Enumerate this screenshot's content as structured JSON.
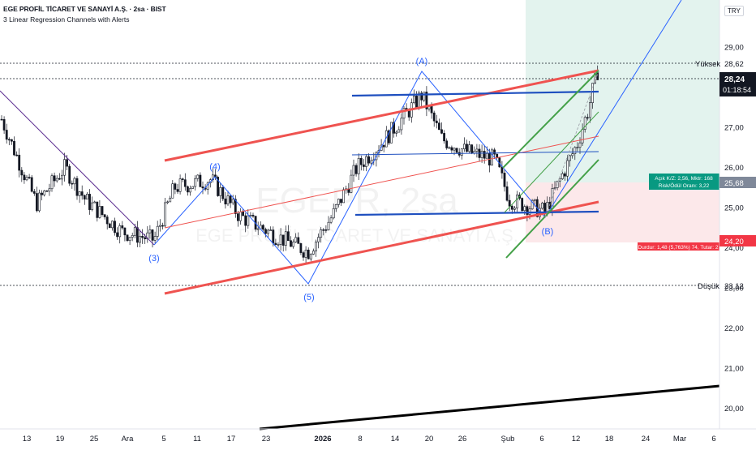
{
  "header": {
    "title": "EGE PROFİL TİCARET VE SANAYİ A.Ş. · 2sa · BIST",
    "subtitle": "3 Linear Regression Channels with Alerts",
    "currency": "TRY"
  },
  "watermark": {
    "symbol": "EGEPR, 2sa",
    "name": "EGE PROFİL TİCARET VE SANAYİ A.Ş."
  },
  "chart_data": {
    "type": "candlestick",
    "ylim": [
      19.7,
      30.1
    ],
    "y_ticks": [
      "29,00",
      "28,00",
      "27,00",
      "26,00",
      "25,00",
      "24,00",
      "23,00",
      "22,00",
      "21,00",
      "20,00"
    ],
    "x_ticks": [
      "13",
      "19",
      "25",
      "Ara",
      "5",
      "11",
      "17",
      "23",
      "2026",
      "8",
      "14",
      "20",
      "26",
      "Şub",
      "6",
      "12",
      "18",
      "24",
      "Mar",
      "6"
    ],
    "wave_labels": [
      "(3)",
      "(4)",
      "(5)",
      "(A)",
      "(B)"
    ],
    "price_levels": {
      "high": {
        "label": "Yüksek",
        "value_text": "28,62",
        "value": 28.62
      },
      "current": {
        "value_text": "28,24",
        "value": 28.24,
        "countdown": "01:18:54"
      },
      "entry": {
        "value_text": "25,68",
        "value": 25.68
      },
      "stop": {
        "value_text": "24,20",
        "value": 24.2
      },
      "low": {
        "label": "Düşük",
        "value_text": "23,12",
        "value": 23.12
      }
    },
    "position_tool": {
      "target_text": "Açık K/Z: 2,56, Mktr: 168",
      "ratio_text": "Risk/Ödül Oranı: 3,22",
      "stop_text": "Durdur: 1,48 (5,763%) 74, Tutar: 2"
    },
    "colors": {
      "up": "#131722",
      "down": "#131722",
      "regression_red": "#ef5350",
      "channel_blue": "#1e4fbf",
      "wave_blue": "#2962ff",
      "green_channel": "#43a047",
      "profit_zone": "#e6f4ef",
      "loss_zone": "#fce8ea",
      "price_tag_current": "#131722",
      "price_tag_entry": "#7f8899",
      "price_tag_stop": "#f23645",
      "price_tag_target": "#089981"
    }
  }
}
